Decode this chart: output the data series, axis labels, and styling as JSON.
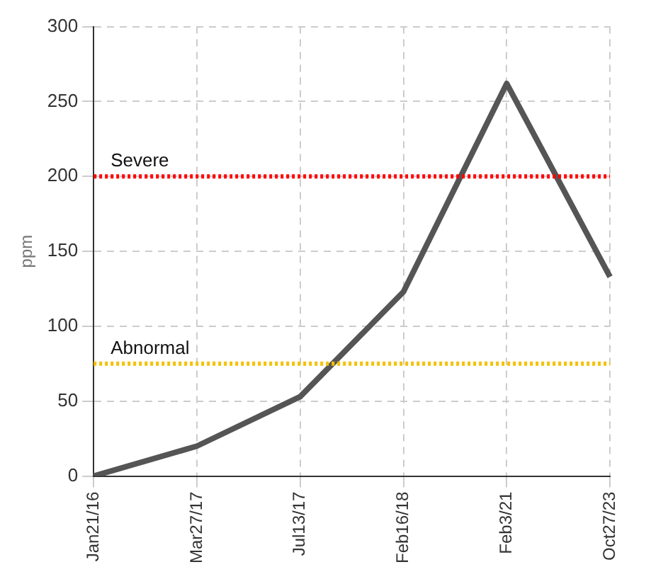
{
  "chart_data": {
    "type": "line",
    "ylabel": "ppm",
    "categories": [
      "Jan21/16",
      "Mar27/17",
      "Jul13/17",
      "Feb16/18",
      "Feb3/21",
      "Oct27/23"
    ],
    "series": [
      {
        "color": "#555555",
        "values": [
          0,
          20,
          53,
          123,
          262,
          133
        ]
      }
    ],
    "ylim": [
      0,
      300
    ],
    "yticks": [
      0,
      50,
      100,
      150,
      200,
      250,
      300
    ],
    "grid": true,
    "legend": false,
    "marker": "none",
    "line_style": "solid",
    "ref_lines": [
      {
        "axis": "y",
        "value": 200,
        "label": "Severe",
        "color": "#ff0000",
        "line_style": "dotted"
      },
      {
        "axis": "y",
        "value": 75,
        "label": "Abnormal",
        "color": "#f5c000",
        "line_style": "dotted"
      }
    ]
  }
}
